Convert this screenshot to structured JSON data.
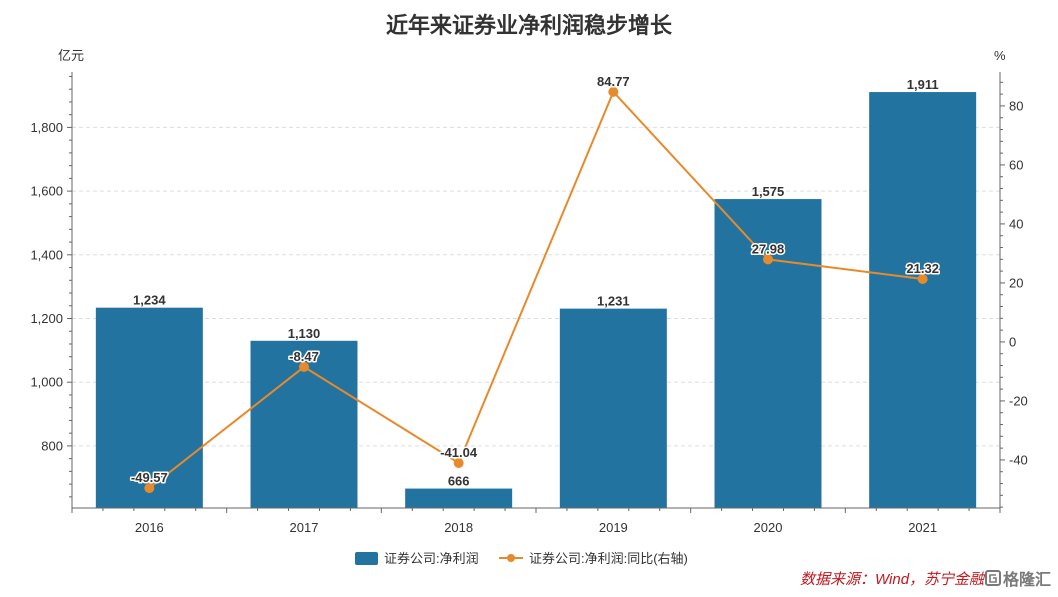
{
  "chart_data": {
    "type": "bar",
    "title": "近年来证券业净利润稳步增长",
    "categories": [
      "2016",
      "2017",
      "2018",
      "2019",
      "2020",
      "2021"
    ],
    "series": [
      {
        "name": "证券公司:净利润",
        "type": "bar",
        "y_axis": "left",
        "color": "#2373a0",
        "values": [
          1234,
          1130,
          666,
          1231,
          1575,
          1911
        ],
        "labels": [
          "1,234",
          "1,130",
          "666",
          "1,231",
          "1,575",
          "1,911"
        ]
      },
      {
        "name": "证券公司:净利润:同比(右轴)",
        "type": "line",
        "y_axis": "right",
        "color": "#e88a2b",
        "values": [
          -49.57,
          -8.47,
          -41.04,
          84.77,
          27.98,
          21.32
        ],
        "labels": [
          "-49.57",
          "-8.47",
          "-41.04",
          "84.77",
          "27.98",
          "21.32"
        ]
      }
    ],
    "y_left": {
      "label": "亿元",
      "range": [
        605,
        1974
      ],
      "ticks": [
        800,
        1000,
        1200,
        1400,
        1600,
        1800
      ],
      "tick_labels": [
        "800",
        "1,000",
        "1,200",
        "1,400",
        "1,600",
        "1,800"
      ]
    },
    "y_right": {
      "label": "%",
      "range": [
        -56.3,
        91.5
      ],
      "ticks": [
        -40,
        -20,
        0,
        20,
        40,
        60,
        80
      ],
      "tick_labels": [
        "-40",
        "-20",
        "0",
        "20",
        "40",
        "60",
        "80"
      ]
    },
    "grid": true,
    "legend": "bottom-center"
  },
  "source": {
    "text": "数据来源：Wind，苏宁金融",
    "color": "#c4161c"
  },
  "watermark": {
    "text": "格隆汇"
  }
}
